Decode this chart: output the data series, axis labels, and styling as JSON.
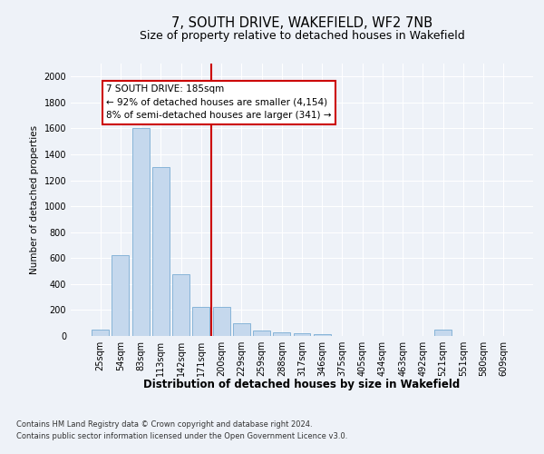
{
  "title1": "7, SOUTH DRIVE, WAKEFIELD, WF2 7NB",
  "title2": "Size of property relative to detached houses in Wakefield",
  "xlabel": "Distribution of detached houses by size in Wakefield",
  "ylabel": "Number of detached properties",
  "categories": [
    "25sqm",
    "54sqm",
    "83sqm",
    "113sqm",
    "142sqm",
    "171sqm",
    "200sqm",
    "229sqm",
    "259sqm",
    "288sqm",
    "317sqm",
    "346sqm",
    "375sqm",
    "405sqm",
    "434sqm",
    "463sqm",
    "492sqm",
    "521sqm",
    "551sqm",
    "580sqm",
    "609sqm"
  ],
  "values": [
    50,
    625,
    1600,
    1300,
    475,
    225,
    225,
    100,
    45,
    30,
    20,
    15,
    0,
    0,
    0,
    0,
    0,
    50,
    0,
    0,
    0
  ],
  "bar_color": "#c5d8ed",
  "bar_edge_color": "#7aadd4",
  "annotation_line1": "7 SOUTH DRIVE: 185sqm",
  "annotation_line2": "← 92% of detached houses are smaller (4,154)",
  "annotation_line3": "8% of semi-detached houses are larger (341) →",
  "annotation_box_color": "#ffffff",
  "annotation_box_edge_color": "#cc0000",
  "vline_color": "#cc0000",
  "vline_x": 5.5,
  "ylim": [
    0,
    2100
  ],
  "yticks": [
    0,
    200,
    400,
    600,
    800,
    1000,
    1200,
    1400,
    1600,
    1800,
    2000
  ],
  "footer1": "Contains HM Land Registry data © Crown copyright and database right 2024.",
  "footer2": "Contains public sector information licensed under the Open Government Licence v3.0.",
  "background_color": "#eef2f8",
  "plot_bg_color": "#eef2f8",
  "grid_color": "#ffffff",
  "title1_fontsize": 10.5,
  "title2_fontsize": 9,
  "ylabel_fontsize": 7.5,
  "xlabel_fontsize": 8.5,
  "tick_fontsize": 7,
  "footer_fontsize": 6,
  "annot_fontsize": 7.5
}
